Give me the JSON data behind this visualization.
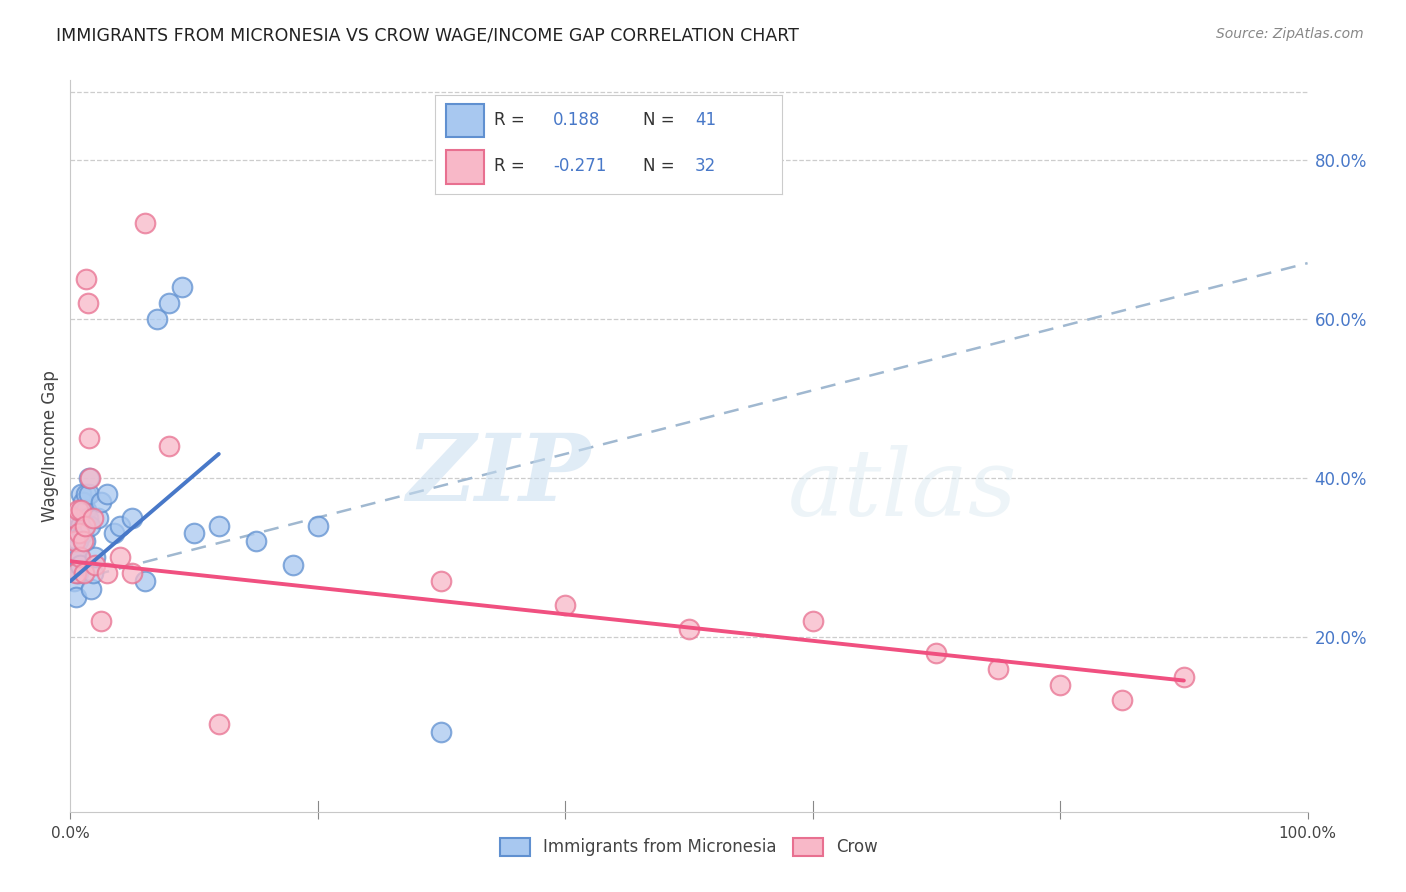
{
  "title": "IMMIGRANTS FROM MICRONESIA VS CROW WAGE/INCOME GAP CORRELATION CHART",
  "source": "Source: ZipAtlas.com",
  "ylabel": "Wage/Income Gap",
  "xlim": [
    0.0,
    1.0
  ],
  "ylim": [
    -0.02,
    0.9
  ],
  "ytick_values": [
    0.2,
    0.4,
    0.6,
    0.8
  ],
  "grid_color": "#c8c8c8",
  "background_color": "#ffffff",
  "blue_fill": "#a8c8f0",
  "pink_fill": "#f8b8c8",
  "blue_edge": "#6090d0",
  "pink_edge": "#e87090",
  "blue_line": "#4878c8",
  "pink_line": "#f05080",
  "dashed_color": "#a0b8d0",
  "series1_name": "Immigrants from Micronesia",
  "series2_name": "Crow",
  "blue_x": [
    0.003,
    0.004,
    0.005,
    0.005,
    0.006,
    0.006,
    0.007,
    0.007,
    0.008,
    0.008,
    0.009,
    0.009,
    0.01,
    0.01,
    0.011,
    0.012,
    0.013,
    0.013,
    0.014,
    0.015,
    0.015,
    0.016,
    0.017,
    0.018,
    0.02,
    0.022,
    0.025,
    0.03,
    0.035,
    0.04,
    0.05,
    0.06,
    0.07,
    0.08,
    0.09,
    0.1,
    0.12,
    0.15,
    0.18,
    0.2,
    0.3
  ],
  "blue_y": [
    0.27,
    0.3,
    0.25,
    0.33,
    0.28,
    0.32,
    0.35,
    0.3,
    0.29,
    0.34,
    0.38,
    0.36,
    0.33,
    0.37,
    0.34,
    0.32,
    0.36,
    0.38,
    0.35,
    0.38,
    0.4,
    0.34,
    0.26,
    0.28,
    0.3,
    0.35,
    0.37,
    0.38,
    0.33,
    0.34,
    0.35,
    0.27,
    0.6,
    0.62,
    0.64,
    0.33,
    0.34,
    0.32,
    0.29,
    0.34,
    0.08
  ],
  "pink_x": [
    0.003,
    0.004,
    0.005,
    0.006,
    0.007,
    0.008,
    0.009,
    0.01,
    0.011,
    0.012,
    0.013,
    0.014,
    0.015,
    0.016,
    0.018,
    0.02,
    0.025,
    0.03,
    0.04,
    0.05,
    0.06,
    0.08,
    0.12,
    0.3,
    0.4,
    0.5,
    0.6,
    0.7,
    0.75,
    0.8,
    0.85,
    0.9
  ],
  "pink_y": [
    0.35,
    0.32,
    0.28,
    0.36,
    0.33,
    0.3,
    0.36,
    0.32,
    0.28,
    0.34,
    0.65,
    0.62,
    0.45,
    0.4,
    0.35,
    0.29,
    0.22,
    0.28,
    0.3,
    0.28,
    0.72,
    0.44,
    0.09,
    0.27,
    0.24,
    0.21,
    0.22,
    0.18,
    0.16,
    0.14,
    0.12,
    0.15
  ],
  "blue_line_x0": 0.0,
  "blue_line_x1": 0.12,
  "blue_line_y0": 0.27,
  "blue_line_y1": 0.43,
  "dashed_line_x0": 0.0,
  "dashed_line_x1": 1.0,
  "dashed_line_y0": 0.27,
  "dashed_line_y1": 0.67,
  "pink_line_x0": 0.0,
  "pink_line_x1": 0.9,
  "pink_line_y0": 0.295,
  "pink_line_y1": 0.145
}
